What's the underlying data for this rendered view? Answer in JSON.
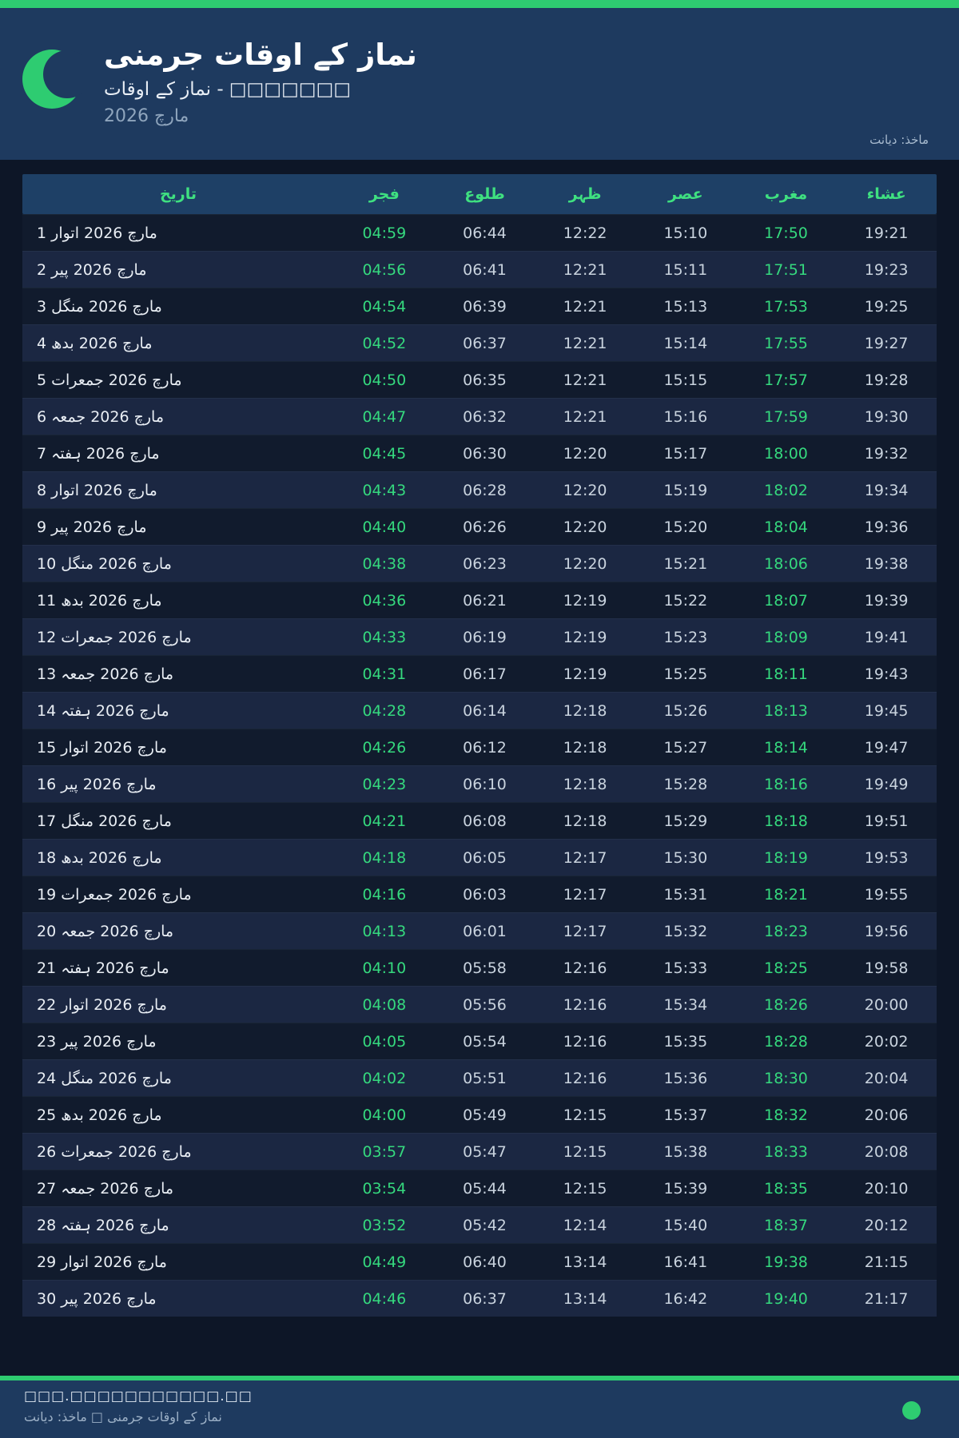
{
  "header": {
    "title": "نماز کے اوقات جرمنی",
    "subtitle": "نماز کے اوقات - □□□□□□□",
    "month_year": "مارچ 2026",
    "source": "ماخذ: دیانت",
    "moon_icon": "crescent-moon-icon",
    "colors": {
      "accent_green": "#2ecc71",
      "header_bg": "#1e3a5f",
      "page_bg": "#0d1627",
      "table_header_bg": "#1e4066",
      "table_header_text": "#3fe080",
      "highlight_time": "#35d97e",
      "row_odd": "#111b2d",
      "row_even": "#1b2742"
    }
  },
  "table": {
    "columns": [
      "تاریخ",
      "فجر",
      "طلوع",
      "ظہر",
      "عصر",
      "مغرب",
      "عشاء"
    ],
    "highlighted_column_indexes": [
      0,
      4
    ],
    "rows": [
      {
        "date": "1 مارچ 2026 اتوار",
        "times": [
          "04:59",
          "06:44",
          "12:22",
          "15:10",
          "17:50",
          "19:21"
        ]
      },
      {
        "date": "2 مارچ 2026 پیر",
        "times": [
          "04:56",
          "06:41",
          "12:21",
          "15:11",
          "17:51",
          "19:23"
        ]
      },
      {
        "date": "3 مارچ 2026 منگل",
        "times": [
          "04:54",
          "06:39",
          "12:21",
          "15:13",
          "17:53",
          "19:25"
        ]
      },
      {
        "date": "4 مارچ 2026 بدھ",
        "times": [
          "04:52",
          "06:37",
          "12:21",
          "15:14",
          "17:55",
          "19:27"
        ]
      },
      {
        "date": "5 مارچ 2026 جمعرات",
        "times": [
          "04:50",
          "06:35",
          "12:21",
          "15:15",
          "17:57",
          "19:28"
        ]
      },
      {
        "date": "6 مارچ 2026 جمعہ",
        "times": [
          "04:47",
          "06:32",
          "12:21",
          "15:16",
          "17:59",
          "19:30"
        ]
      },
      {
        "date": "7 مارچ 2026 ہفتہ",
        "times": [
          "04:45",
          "06:30",
          "12:20",
          "15:17",
          "18:00",
          "19:32"
        ]
      },
      {
        "date": "8 مارچ 2026 اتوار",
        "times": [
          "04:43",
          "06:28",
          "12:20",
          "15:19",
          "18:02",
          "19:34"
        ]
      },
      {
        "date": "9 مارچ 2026 پیر",
        "times": [
          "04:40",
          "06:26",
          "12:20",
          "15:20",
          "18:04",
          "19:36"
        ]
      },
      {
        "date": "10 مارچ 2026 منگل",
        "times": [
          "04:38",
          "06:23",
          "12:20",
          "15:21",
          "18:06",
          "19:38"
        ]
      },
      {
        "date": "11 مارچ 2026 بدھ",
        "times": [
          "04:36",
          "06:21",
          "12:19",
          "15:22",
          "18:07",
          "19:39"
        ]
      },
      {
        "date": "12 مارچ 2026 جمعرات",
        "times": [
          "04:33",
          "06:19",
          "12:19",
          "15:23",
          "18:09",
          "19:41"
        ]
      },
      {
        "date": "13 مارچ 2026 جمعہ",
        "times": [
          "04:31",
          "06:17",
          "12:19",
          "15:25",
          "18:11",
          "19:43"
        ]
      },
      {
        "date": "14 مارچ 2026 ہفتہ",
        "times": [
          "04:28",
          "06:14",
          "12:18",
          "15:26",
          "18:13",
          "19:45"
        ]
      },
      {
        "date": "15 مارچ 2026 اتوار",
        "times": [
          "04:26",
          "06:12",
          "12:18",
          "15:27",
          "18:14",
          "19:47"
        ]
      },
      {
        "date": "16 مارچ 2026 پیر",
        "times": [
          "04:23",
          "06:10",
          "12:18",
          "15:28",
          "18:16",
          "19:49"
        ]
      },
      {
        "date": "17 مارچ 2026 منگل",
        "times": [
          "04:21",
          "06:08",
          "12:18",
          "15:29",
          "18:18",
          "19:51"
        ]
      },
      {
        "date": "18 مارچ 2026 بدھ",
        "times": [
          "04:18",
          "06:05",
          "12:17",
          "15:30",
          "18:19",
          "19:53"
        ]
      },
      {
        "date": "19 مارچ 2026 جمعرات",
        "times": [
          "04:16",
          "06:03",
          "12:17",
          "15:31",
          "18:21",
          "19:55"
        ]
      },
      {
        "date": "20 مارچ 2026 جمعہ",
        "times": [
          "04:13",
          "06:01",
          "12:17",
          "15:32",
          "18:23",
          "19:56"
        ]
      },
      {
        "date": "21 مارچ 2026 ہفتہ",
        "times": [
          "04:10",
          "05:58",
          "12:16",
          "15:33",
          "18:25",
          "19:58"
        ]
      },
      {
        "date": "22 مارچ 2026 اتوار",
        "times": [
          "04:08",
          "05:56",
          "12:16",
          "15:34",
          "18:26",
          "20:00"
        ]
      },
      {
        "date": "23 مارچ 2026 پیر",
        "times": [
          "04:05",
          "05:54",
          "12:16",
          "15:35",
          "18:28",
          "20:02"
        ]
      },
      {
        "date": "24 مارچ 2026 منگل",
        "times": [
          "04:02",
          "05:51",
          "12:16",
          "15:36",
          "18:30",
          "20:04"
        ]
      },
      {
        "date": "25 مارچ 2026 بدھ",
        "times": [
          "04:00",
          "05:49",
          "12:15",
          "15:37",
          "18:32",
          "20:06"
        ]
      },
      {
        "date": "26 مارچ 2026 جمعرات",
        "times": [
          "03:57",
          "05:47",
          "12:15",
          "15:38",
          "18:33",
          "20:08"
        ]
      },
      {
        "date": "27 مارچ 2026 جمعہ",
        "times": [
          "03:54",
          "05:44",
          "12:15",
          "15:39",
          "18:35",
          "20:10"
        ]
      },
      {
        "date": "28 مارچ 2026 ہفتہ",
        "times": [
          "03:52",
          "05:42",
          "12:14",
          "15:40",
          "18:37",
          "20:12"
        ]
      },
      {
        "date": "29 مارچ 2026 اتوار",
        "times": [
          "04:49",
          "06:40",
          "13:14",
          "16:41",
          "19:38",
          "21:15"
        ]
      },
      {
        "date": "30 مارچ 2026 پیر",
        "times": [
          "04:46",
          "06:37",
          "13:14",
          "16:42",
          "19:40",
          "21:17"
        ]
      }
    ]
  },
  "footer": {
    "url": "□□□.□□□□□□□□□□□.□□",
    "caption": "نماز کے اوقات جرمنی □ ماخذ: دیانت",
    "dot_color": "#2ecc71"
  }
}
